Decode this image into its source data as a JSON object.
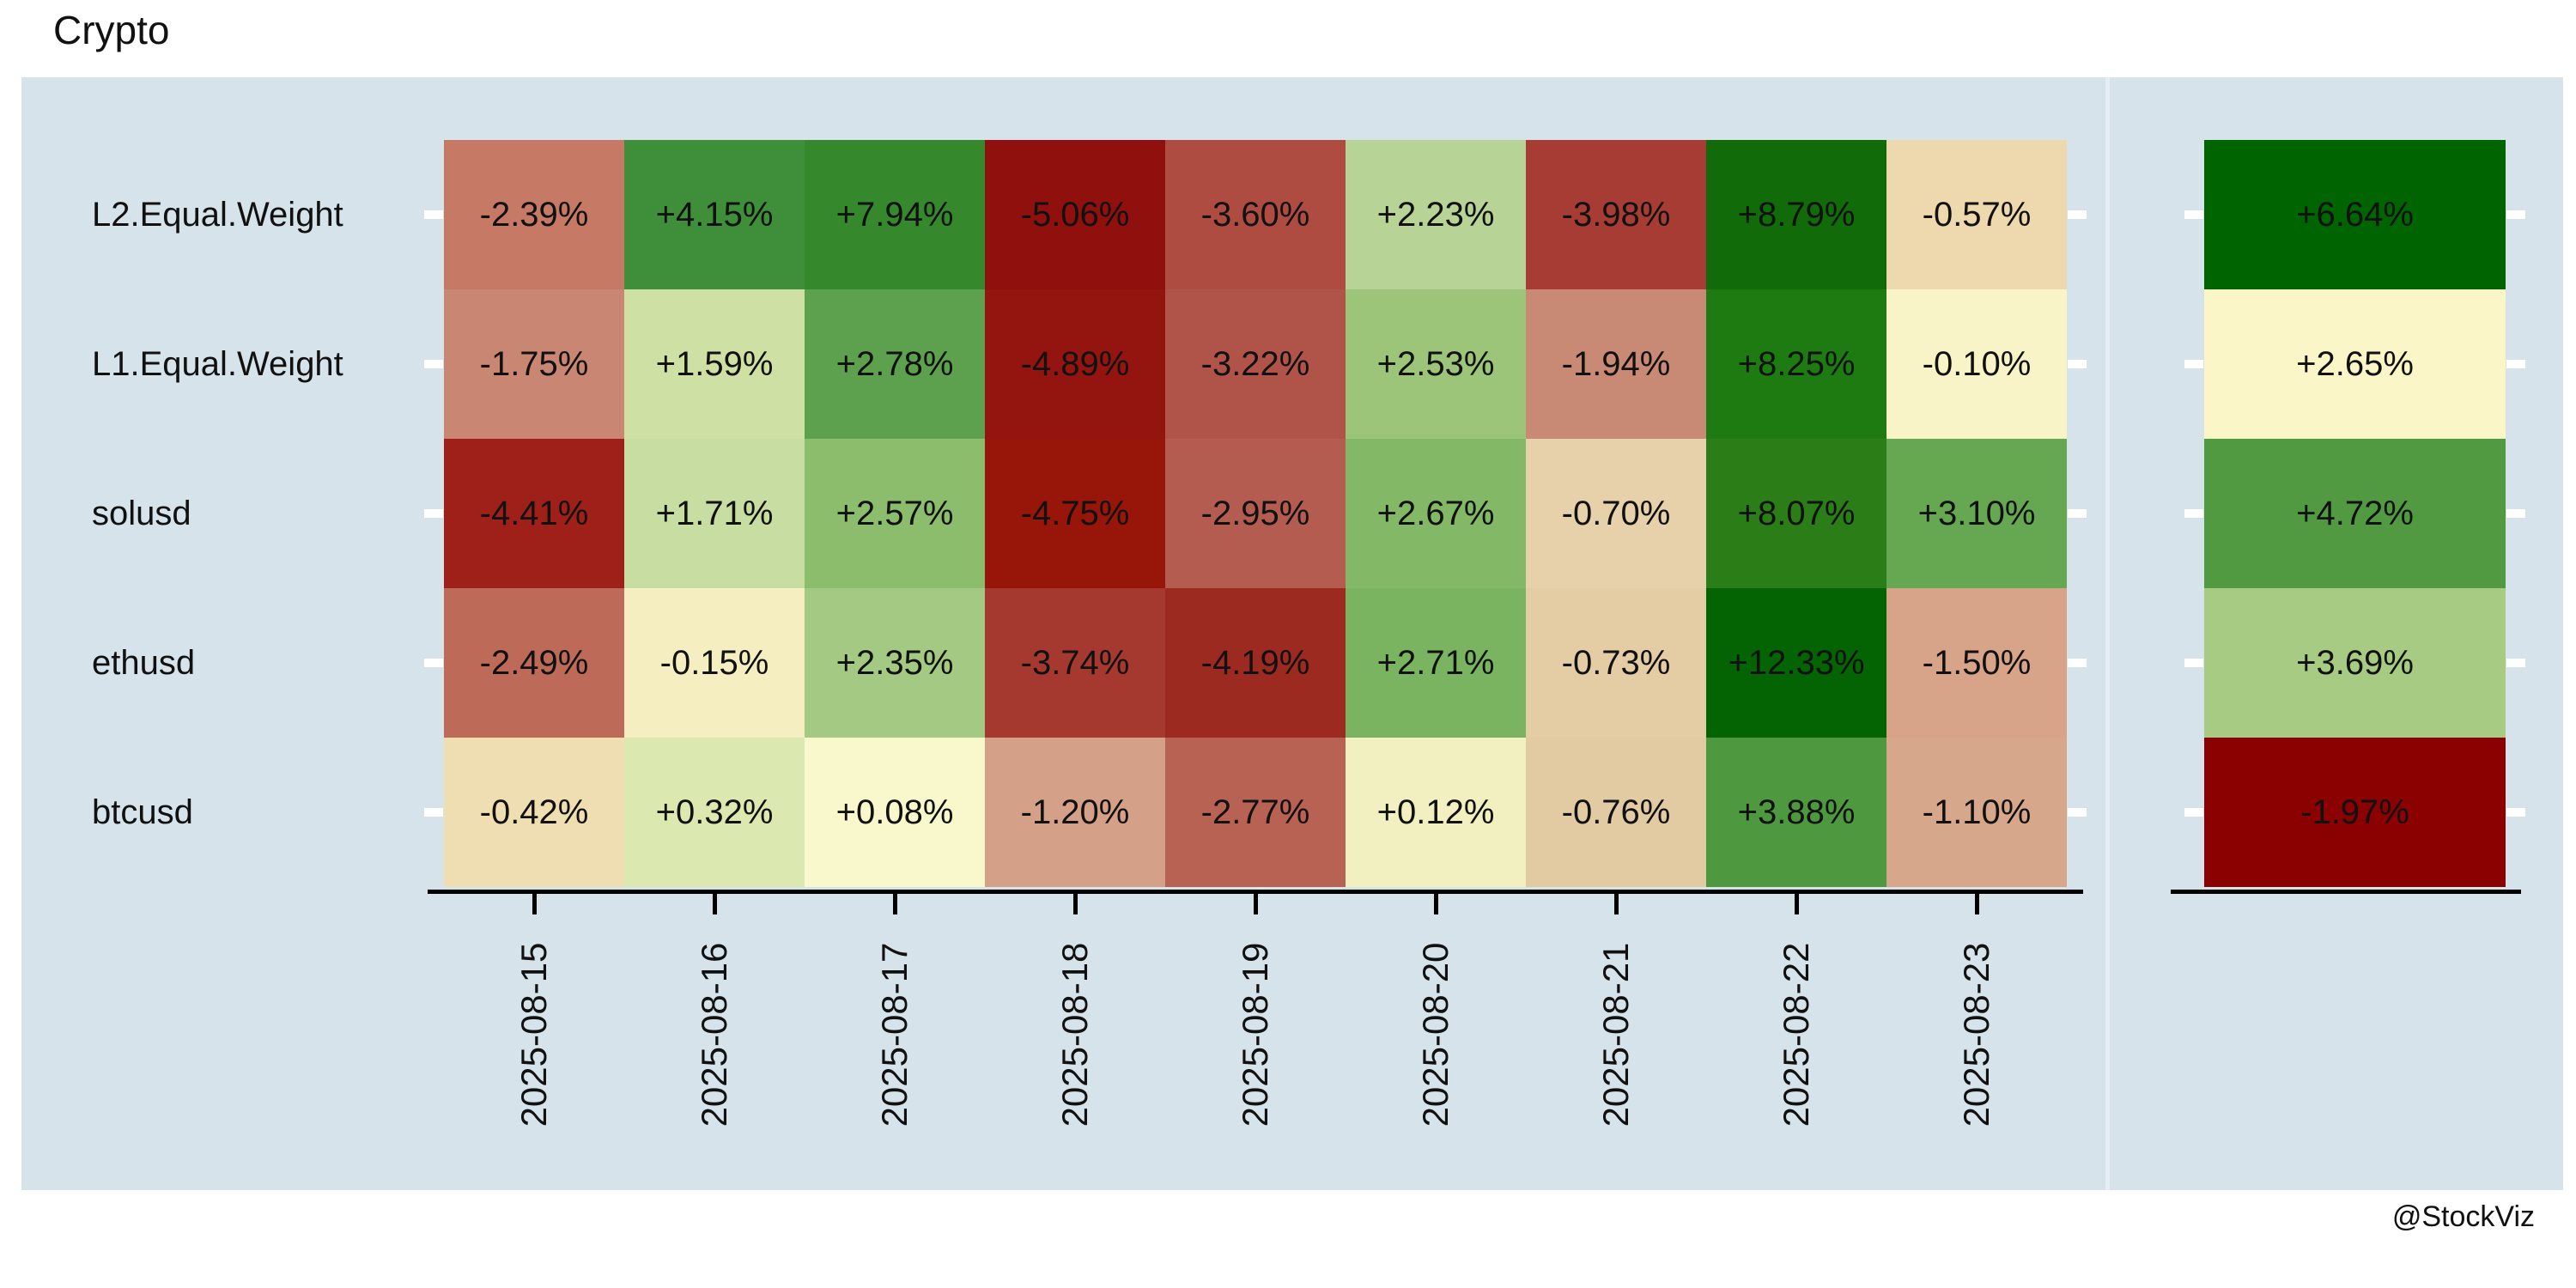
{
  "title": "Crypto",
  "attribution": "@StockViz",
  "colors": {
    "panel_bg": "#d6e3eb",
    "panel_divider": "#e4eef4",
    "axis_line": "#000000",
    "axis_tick_white": "#ffffff",
    "text": "#111111"
  },
  "chart_data": {
    "type": "heatmap",
    "title": "Crypto",
    "rows": [
      "L2.Equal.Weight",
      "L1.Equal.Weight",
      "solusd",
      "ethusd",
      "btcusd"
    ],
    "columns": [
      "2025-08-15",
      "2025-08-16",
      "2025-08-17",
      "2025-08-18",
      "2025-08-19",
      "2025-08-20",
      "2025-08-21",
      "2025-08-22",
      "2025-08-23"
    ],
    "value_unit": "percent",
    "values_pct": [
      [
        -2.39,
        4.15,
        7.94,
        -5.06,
        -3.6,
        2.23,
        -3.98,
        8.79,
        -0.57
      ],
      [
        -1.75,
        1.59,
        2.78,
        -4.89,
        -3.22,
        2.53,
        -1.94,
        8.25,
        -0.1
      ],
      [
        -4.41,
        1.71,
        2.57,
        -4.75,
        -2.95,
        2.67,
        -0.7,
        8.07,
        3.1
      ],
      [
        -2.49,
        -0.15,
        2.35,
        -3.74,
        -4.19,
        2.71,
        -0.73,
        12.33,
        -1.5
      ],
      [
        -0.42,
        0.32,
        0.08,
        -1.2,
        -2.77,
        0.12,
        -0.76,
        3.88,
        -1.1
      ]
    ],
    "totals_pct": [
      6.64,
      2.65,
      4.72,
      3.69,
      -1.97
    ],
    "cell_colors": [
      [
        "#c67a65",
        "#3e8e3a",
        "#35882c",
        "#90100d",
        "#ae4c42",
        "#b7d396",
        "#a73c34",
        "#106b08",
        "#eed8ad"
      ],
      [
        "#c98673",
        "#cfe0a5",
        "#5da04d",
        "#941410",
        "#b0544a",
        "#9cc579",
        "#c88a75",
        "#1d7b12",
        "#f8f4c7"
      ],
      [
        "#9e2019",
        "#c8dda1",
        "#8cbd6d",
        "#971509",
        "#b45c50",
        "#83b866",
        "#e7d1aa",
        "#2a7d17",
        "#66a751"
      ],
      [
        "#bd6a58",
        "#f4eec0",
        "#a3c982",
        "#a5392f",
        "#9d2a21",
        "#7bb461",
        "#e4cda5",
        "#046404",
        "#d7a389"
      ],
      [
        "#efdeb1",
        "#dbe9b1",
        "#f9f7cc",
        "#d5a088",
        "#b86253",
        "#f2f0c1",
        "#e2cba3",
        "#4e9840",
        "#d7a78b"
      ]
    ],
    "total_colors": [
      "#006400",
      "#faf6c8",
      "#529a41",
      "#a7cb82",
      "#8b0000"
    ],
    "legend_position": "none",
    "grid": false
  }
}
